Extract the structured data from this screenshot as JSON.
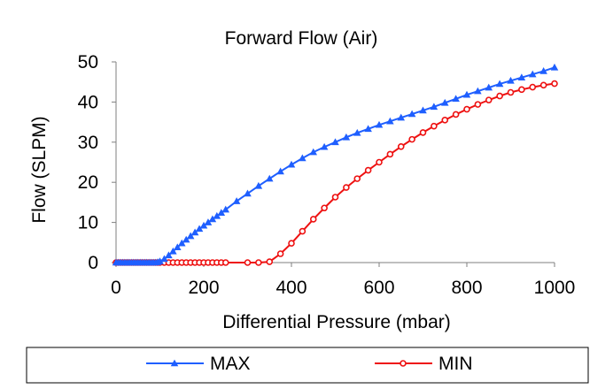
{
  "chart_data": {
    "type": "line",
    "title": "Forward Flow (Air)",
    "xlabel": "Differential Pressure (mbar)",
    "ylabel": "Flow (SLPM)",
    "xlim": [
      0,
      1000
    ],
    "ylim": [
      0,
      50
    ],
    "xticks": [
      "0",
      "200",
      "400",
      "600",
      "800",
      "1000"
    ],
    "yticks": [
      "0",
      "10",
      "20",
      "30",
      "40",
      "50"
    ],
    "grid": false,
    "legend_position": "bottom",
    "series": [
      {
        "name": "MAX",
        "color": "#1f5fff",
        "marker": "triangle",
        "x": [
          0,
          5,
          10,
          15,
          20,
          25,
          30,
          35,
          40,
          45,
          50,
          55,
          60,
          65,
          70,
          75,
          80,
          85,
          90,
          95,
          100,
          110,
          120,
          130,
          140,
          150,
          160,
          170,
          180,
          190,
          200,
          210,
          220,
          230,
          240,
          250,
          275,
          300,
          325,
          350,
          375,
          400,
          425,
          450,
          475,
          500,
          525,
          550,
          575,
          600,
          625,
          650,
          675,
          700,
          725,
          750,
          775,
          800,
          825,
          850,
          875,
          900,
          925,
          950,
          975,
          1000
        ],
        "y": [
          0,
          0,
          0,
          0,
          0,
          0,
          0,
          0,
          0,
          0,
          0,
          0,
          0,
          0,
          0,
          0,
          0,
          0,
          0,
          0.1,
          0.3,
          0.9,
          1.8,
          2.8,
          3.8,
          4.8,
          5.7,
          6.6,
          7.5,
          8.4,
          9.2,
          10.0,
          10.8,
          11.6,
          12.4,
          13.2,
          15.3,
          17.2,
          19.1,
          20.9,
          22.7,
          24.4,
          26.0,
          27.5,
          28.8,
          30.0,
          31.2,
          32.3,
          33.3,
          34.3,
          35.2,
          36.1,
          37.0,
          37.9,
          38.8,
          39.8,
          40.8,
          41.8,
          42.7,
          43.6,
          44.5,
          45.3,
          46.1,
          46.9,
          47.7,
          48.6
        ]
      },
      {
        "name": "MIN",
        "color": "#ee1111",
        "marker": "circle",
        "x": [
          0,
          5,
          10,
          15,
          20,
          25,
          30,
          35,
          40,
          45,
          50,
          55,
          60,
          65,
          70,
          75,
          80,
          85,
          90,
          95,
          100,
          110,
          120,
          130,
          140,
          150,
          160,
          170,
          180,
          190,
          200,
          210,
          220,
          230,
          240,
          250,
          300,
          325,
          350,
          375,
          400,
          425,
          450,
          475,
          500,
          525,
          550,
          575,
          600,
          625,
          650,
          675,
          700,
          725,
          750,
          775,
          800,
          825,
          850,
          875,
          900,
          925,
          950,
          975,
          1000
        ],
        "y": [
          0,
          0,
          0,
          0,
          0,
          0,
          0,
          0,
          0,
          0,
          0,
          0,
          0,
          0,
          0,
          0,
          0,
          0,
          0,
          0,
          0,
          0,
          0,
          0,
          0,
          0,
          0,
          0,
          0,
          0,
          0,
          0,
          0,
          0,
          0,
          0,
          0,
          0,
          0.2,
          2.2,
          4.8,
          7.8,
          10.8,
          13.6,
          16.3,
          18.7,
          20.9,
          23.0,
          25.0,
          27.0,
          28.9,
          30.7,
          32.4,
          34.0,
          35.5,
          36.9,
          38.2,
          39.4,
          40.5,
          41.5,
          42.4,
          43.1,
          43.7,
          44.2,
          44.6
        ]
      }
    ]
  }
}
